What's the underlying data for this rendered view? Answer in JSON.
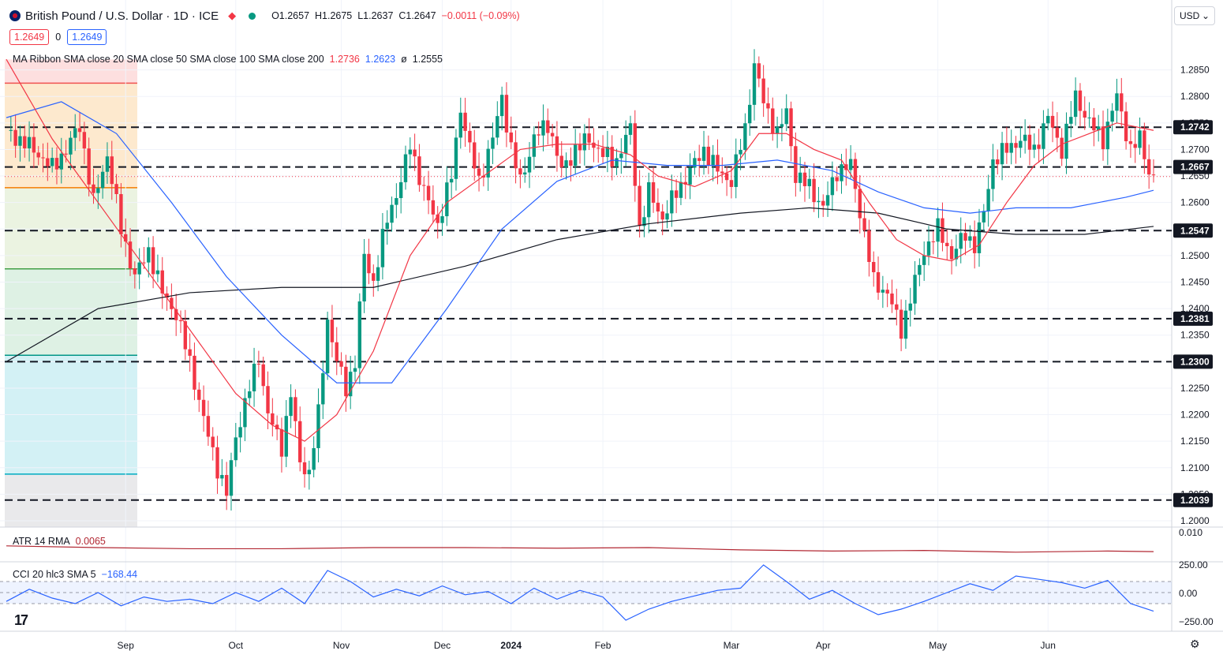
{
  "header": {
    "title": "British Pound / U.S. Dollar · 1D · ICE",
    "ohlc": {
      "o": "O1.2657",
      "h": "H1.2675",
      "l": "L1.2637",
      "c": "C1.2647",
      "chg": "−0.0011 (−0.09%)"
    },
    "sell_price": "1.2649",
    "spread": "0",
    "buy_price": "1.2649",
    "currency_selector": "USD"
  },
  "ma_legend": {
    "label": "MA Ribbon SMA close 20 SMA close 50 SMA close 100 SMA close 200",
    "v20": "1.2736",
    "v50": "1.2623",
    "v100": "ø",
    "v200": "1.2555"
  },
  "indicators": {
    "atr": {
      "label": "ATR 14 RMA",
      "value": "0.0065",
      "axis": [
        "0.010"
      ]
    },
    "cci": {
      "label": "CCI 20 hlc3 SMA 5",
      "value": "−168.44",
      "axis": [
        "250.00",
        "0.00",
        "−250.00"
      ]
    }
  },
  "colors": {
    "up": "#089981",
    "down": "#f23645",
    "sma20": "#f23645",
    "sma50": "#2962ff",
    "sma200": "#131722",
    "atr": "#b22833",
    "cci": "#2962ff"
  },
  "chart_data": {
    "type": "candlestick",
    "title": "British Pound / U.S. Dollar · 1D · ICE",
    "ylim": [
      1.2,
      1.29
    ],
    "y_ticks": [
      "1.2000",
      "1.2050",
      "1.2100",
      "1.2150",
      "1.2200",
      "1.2250",
      "1.2300",
      "1.2350",
      "1.2400",
      "1.2450",
      "1.2500",
      "1.2550",
      "1.2600",
      "1.2650",
      "1.2700",
      "1.2750",
      "1.2800",
      "1.2850"
    ],
    "x_ticks": [
      "Sep",
      "Oct",
      "Nov",
      "Dec",
      "2024",
      "Feb",
      "Mar",
      "Apr",
      "May",
      "Jun"
    ],
    "levels": [
      "1.2742",
      "1.2667",
      "1.2547",
      "1.2381",
      "1.2300",
      "1.2039"
    ],
    "current_price": 1.2649,
    "fib_levels": [
      1.2825,
      1.2628,
      1.2475,
      1.2312,
      1.2088
    ],
    "close_path": [
      [
        0,
        1.2735
      ],
      [
        6,
        1.27
      ],
      [
        10,
        1.2665
      ],
      [
        13,
        1.27
      ],
      [
        16,
        1.2745
      ],
      [
        19,
        1.26
      ],
      [
        22,
        1.269
      ],
      [
        25,
        1.255
      ],
      [
        28,
        1.246
      ],
      [
        31,
        1.251
      ],
      [
        34,
        1.243
      ],
      [
        37,
        1.239
      ],
      [
        40,
        1.23
      ],
      [
        43,
        1.219
      ],
      [
        46,
        1.21
      ],
      [
        48,
        1.205
      ],
      [
        50,
        1.216
      ],
      [
        53,
        1.225
      ],
      [
        55,
        1.231
      ],
      [
        57,
        1.22
      ],
      [
        60,
        1.214
      ],
      [
        62,
        1.224
      ],
      [
        64,
        1.211
      ],
      [
        66,
        1.209
      ],
      [
        68,
        1.22
      ],
      [
        70,
        1.238
      ],
      [
        72,
        1.23
      ],
      [
        74,
        1.225
      ],
      [
        76,
        1.23
      ],
      [
        78,
        1.25
      ],
      [
        80,
        1.245
      ],
      [
        83,
        1.257
      ],
      [
        86,
        1.264
      ],
      [
        88,
        1.271
      ],
      [
        91,
        1.262
      ],
      [
        94,
        1.256
      ],
      [
        97,
        1.265
      ],
      [
        99,
        1.278
      ],
      [
        101,
        1.27
      ],
      [
        103,
        1.264
      ],
      [
        106,
        1.272
      ],
      [
        108,
        1.28
      ],
      [
        110,
        1.27
      ],
      [
        112,
        1.264
      ],
      [
        115,
        1.272
      ],
      [
        118,
        1.275
      ],
      [
        121,
        1.266
      ],
      [
        124,
        1.27
      ],
      [
        127,
        1.272
      ],
      [
        130,
        1.269
      ],
      [
        133,
        1.268
      ],
      [
        136,
        1.274
      ],
      [
        138,
        1.255
      ],
      [
        140,
        1.262
      ],
      [
        143,
        1.257
      ],
      [
        146,
        1.262
      ],
      [
        149,
        1.266
      ],
      [
        152,
        1.27
      ],
      [
        155,
        1.266
      ],
      [
        158,
        1.264
      ],
      [
        161,
        1.274
      ],
      [
        163,
        1.286
      ],
      [
        165,
        1.279
      ],
      [
        168,
        1.273
      ],
      [
        170,
        1.277
      ],
      [
        172,
        1.265
      ],
      [
        175,
        1.263
      ],
      [
        178,
        1.259
      ],
      [
        181,
        1.266
      ],
      [
        184,
        1.267
      ],
      [
        187,
        1.254
      ],
      [
        189,
        1.245
      ],
      [
        192,
        1.243
      ],
      [
        195,
        1.236
      ],
      [
        198,
        1.245
      ],
      [
        200,
        1.251
      ],
      [
        203,
        1.255
      ],
      [
        206,
        1.25
      ],
      [
        209,
        1.254
      ],
      [
        211,
        1.252
      ],
      [
        213,
        1.258
      ],
      [
        215,
        1.268
      ],
      [
        218,
        1.27
      ],
      [
        221,
        1.272
      ],
      [
        224,
        1.27
      ],
      [
        227,
        1.276
      ],
      [
        230,
        1.27
      ],
      [
        233,
        1.28
      ],
      [
        236,
        1.275
      ],
      [
        239,
        1.272
      ],
      [
        242,
        1.28
      ],
      [
        245,
        1.27
      ],
      [
        247,
        1.272
      ],
      [
        249,
        1.266
      ],
      [
        250,
        1.2647
      ]
    ],
    "sma20_path": [
      [
        0,
        1.287
      ],
      [
        10,
        1.272
      ],
      [
        20,
        1.26
      ],
      [
        30,
        1.248
      ],
      [
        40,
        1.236
      ],
      [
        50,
        1.224
      ],
      [
        58,
        1.218
      ],
      [
        65,
        1.215
      ],
      [
        72,
        1.22
      ],
      [
        80,
        1.232
      ],
      [
        88,
        1.25
      ],
      [
        96,
        1.26
      ],
      [
        104,
        1.265
      ],
      [
        112,
        1.27
      ],
      [
        120,
        1.271
      ],
      [
        128,
        1.271
      ],
      [
        136,
        1.269
      ],
      [
        142,
        1.265
      ],
      [
        150,
        1.263
      ],
      [
        158,
        1.266
      ],
      [
        164,
        1.273
      ],
      [
        170,
        1.273
      ],
      [
        176,
        1.27
      ],
      [
        182,
        1.268
      ],
      [
        188,
        1.26
      ],
      [
        194,
        1.253
      ],
      [
        200,
        1.25
      ],
      [
        206,
        1.249
      ],
      [
        212,
        1.252
      ],
      [
        218,
        1.26
      ],
      [
        224,
        1.267
      ],
      [
        230,
        1.271
      ],
      [
        236,
        1.273
      ],
      [
        242,
        1.275
      ],
      [
        250,
        1.2736
      ]
    ],
    "sma50_path": [
      [
        0,
        1.276
      ],
      [
        12,
        1.279
      ],
      [
        24,
        1.273
      ],
      [
        36,
        1.26
      ],
      [
        48,
        1.246
      ],
      [
        60,
        1.235
      ],
      [
        72,
        1.226
      ],
      [
        84,
        1.226
      ],
      [
        96,
        1.24
      ],
      [
        108,
        1.255
      ],
      [
        120,
        1.264
      ],
      [
        132,
        1.268
      ],
      [
        144,
        1.267
      ],
      [
        156,
        1.267
      ],
      [
        168,
        1.268
      ],
      [
        180,
        1.266
      ],
      [
        190,
        1.262
      ],
      [
        200,
        1.259
      ],
      [
        210,
        1.258
      ],
      [
        220,
        1.259
      ],
      [
        232,
        1.259
      ],
      [
        244,
        1.261
      ],
      [
        250,
        1.2623
      ]
    ],
    "sma200_path": [
      [
        0,
        1.23
      ],
      [
        20,
        1.24
      ],
      [
        40,
        1.243
      ],
      [
        60,
        1.244
      ],
      [
        80,
        1.244
      ],
      [
        100,
        1.248
      ],
      [
        120,
        1.253
      ],
      [
        140,
        1.256
      ],
      [
        160,
        1.258
      ],
      [
        175,
        1.259
      ],
      [
        190,
        1.258
      ],
      [
        205,
        1.255
      ],
      [
        220,
        1.254
      ],
      [
        235,
        1.254
      ],
      [
        250,
        1.2555
      ]
    ],
    "atr_path": [
      [
        0,
        0.0075
      ],
      [
        20,
        0.0072
      ],
      [
        40,
        0.007
      ],
      [
        60,
        0.007
      ],
      [
        80,
        0.0072
      ],
      [
        100,
        0.0072
      ],
      [
        120,
        0.0071
      ],
      [
        140,
        0.0072
      ],
      [
        160,
        0.0068
      ],
      [
        180,
        0.0066
      ],
      [
        200,
        0.0067
      ],
      [
        220,
        0.0064
      ],
      [
        240,
        0.0066
      ],
      [
        250,
        0.0065
      ]
    ],
    "cci_path": [
      [
        0,
        -80
      ],
      [
        5,
        30
      ],
      [
        10,
        -50
      ],
      [
        15,
        -100
      ],
      [
        20,
        0
      ],
      [
        25,
        -120
      ],
      [
        30,
        -40
      ],
      [
        35,
        -80
      ],
      [
        40,
        -60
      ],
      [
        45,
        -100
      ],
      [
        50,
        0
      ],
      [
        55,
        -80
      ],
      [
        60,
        40
      ],
      [
        65,
        -100
      ],
      [
        70,
        200
      ],
      [
        75,
        100
      ],
      [
        80,
        -40
      ],
      [
        85,
        30
      ],
      [
        90,
        -30
      ],
      [
        95,
        60
      ],
      [
        100,
        -20
      ],
      [
        105,
        10
      ],
      [
        110,
        -100
      ],
      [
        115,
        40
      ],
      [
        120,
        -60
      ],
      [
        125,
        20
      ],
      [
        130,
        -40
      ],
      [
        135,
        -250
      ],
      [
        140,
        -150
      ],
      [
        145,
        -80
      ],
      [
        150,
        -30
      ],
      [
        155,
        20
      ],
      [
        160,
        40
      ],
      [
        165,
        250
      ],
      [
        170,
        100
      ],
      [
        175,
        -60
      ],
      [
        180,
        20
      ],
      [
        185,
        -100
      ],
      [
        190,
        -200
      ],
      [
        195,
        -150
      ],
      [
        200,
        -80
      ],
      [
        205,
        0
      ],
      [
        210,
        80
      ],
      [
        215,
        20
      ],
      [
        220,
        150
      ],
      [
        225,
        120
      ],
      [
        230,
        90
      ],
      [
        235,
        40
      ],
      [
        240,
        110
      ],
      [
        245,
        -100
      ],
      [
        250,
        -168.44
      ]
    ]
  }
}
